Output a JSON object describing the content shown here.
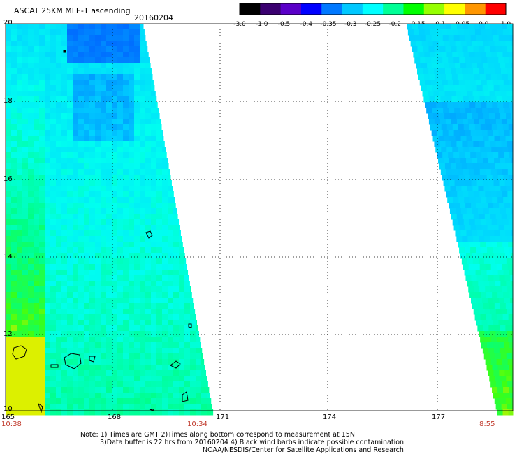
{
  "header": {
    "title": "ASCAT 25KM MLE-1 ascending",
    "date": "20160204"
  },
  "colorbar": {
    "labels": [
      "-3.0",
      "-1.0",
      "-0.5",
      "-0.4",
      "-0.35",
      "-0.3",
      "-0.25",
      "-0.2",
      "-0.15",
      "-0.1",
      "-0.05",
      "0.0",
      "1.0"
    ],
    "colors": [
      "#000000",
      "#3a0070",
      "#5a00c8",
      "#0000ff",
      "#0078ff",
      "#00c8ff",
      "#00ffff",
      "#00ff96",
      "#00ff00",
      "#96ff00",
      "#ffff00",
      "#ff9600",
      "#ff0000"
    ]
  },
  "map": {
    "lat_labels": [
      "20",
      "18",
      "16",
      "14",
      "12",
      "10"
    ],
    "lon_labels": [
      "165",
      "168",
      "171",
      "174",
      "177"
    ],
    "lat_range": [
      10,
      20
    ],
    "lon_range": [
      165,
      179
    ],
    "pass_times": [
      "10:38",
      "10:34",
      "8:55"
    ]
  },
  "footer": {
    "line1": "Note: 1) Times are GMT 2)Times along bottom correspond to measurement at 15N",
    "line2": "3)Data buffer is 22 hrs from 20160204 4) Black wind barbs indicate possible contamination",
    "line3": "NOAA/NESDIS/Center for Satellite Applications and Research"
  }
}
